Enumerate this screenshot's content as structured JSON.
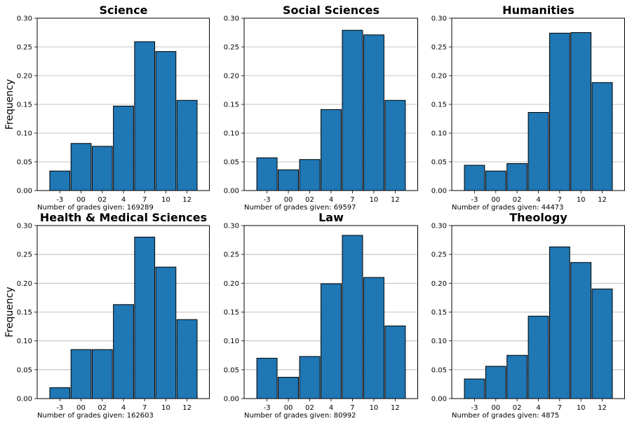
{
  "shared": {
    "ylabel": "Frequency",
    "count_prefix": "Number of grades given: ",
    "bar_color": "#1f77b4",
    "grid_color": "#b0b0b0",
    "yticks": [
      "0.00",
      "0.05",
      "0.10",
      "0.15",
      "0.20",
      "0.25",
      "0.30"
    ]
  },
  "chart_data": [
    {
      "type": "bar",
      "title": "Science",
      "categories": [
        "-3",
        "00",
        "02",
        "4",
        "7",
        "10",
        "12"
      ],
      "values": [
        0.034,
        0.082,
        0.077,
        0.147,
        0.259,
        0.242,
        0.157
      ],
      "ylim": [
        0,
        0.3
      ],
      "ylabel": "Frequency",
      "count": "169289",
      "grid": "horizontal"
    },
    {
      "type": "bar",
      "title": "Social Sciences",
      "categories": [
        "-3",
        "00",
        "02",
        "4",
        "7",
        "10",
        "12"
      ],
      "values": [
        0.057,
        0.036,
        0.054,
        0.141,
        0.279,
        0.271,
        0.157
      ],
      "ylim": [
        0,
        0.3
      ],
      "count": "69597",
      "grid": "horizontal"
    },
    {
      "type": "bar",
      "title": "Humanities",
      "categories": [
        "-3",
        "00",
        "02",
        "4",
        "7",
        "10",
        "12"
      ],
      "values": [
        0.044,
        0.034,
        0.047,
        0.136,
        0.274,
        0.275,
        0.188
      ],
      "ylim": [
        0,
        0.3
      ],
      "count": "44473",
      "grid": "horizontal"
    },
    {
      "type": "bar",
      "title": "Health & Medical Sciences",
      "categories": [
        "-3",
        "00",
        "02",
        "4",
        "7",
        "10",
        "12"
      ],
      "values": [
        0.019,
        0.085,
        0.085,
        0.163,
        0.28,
        0.228,
        0.137
      ],
      "ylim": [
        0,
        0.3
      ],
      "ylabel": "Frequency",
      "count": "162603",
      "grid": "horizontal"
    },
    {
      "type": "bar",
      "title": "Law",
      "categories": [
        "-3",
        "00",
        "02",
        "4",
        "7",
        "10",
        "12"
      ],
      "values": [
        0.07,
        0.037,
        0.073,
        0.199,
        0.283,
        0.21,
        0.126
      ],
      "ylim": [
        0,
        0.3
      ],
      "count": "80992",
      "grid": "horizontal"
    },
    {
      "type": "bar",
      "title": "Theology",
      "categories": [
        "-3",
        "00",
        "02",
        "4",
        "7",
        "10",
        "12"
      ],
      "values": [
        0.034,
        0.056,
        0.075,
        0.143,
        0.263,
        0.236,
        0.19
      ],
      "ylim": [
        0,
        0.3
      ],
      "count": "4875",
      "grid": "horizontal"
    }
  ]
}
